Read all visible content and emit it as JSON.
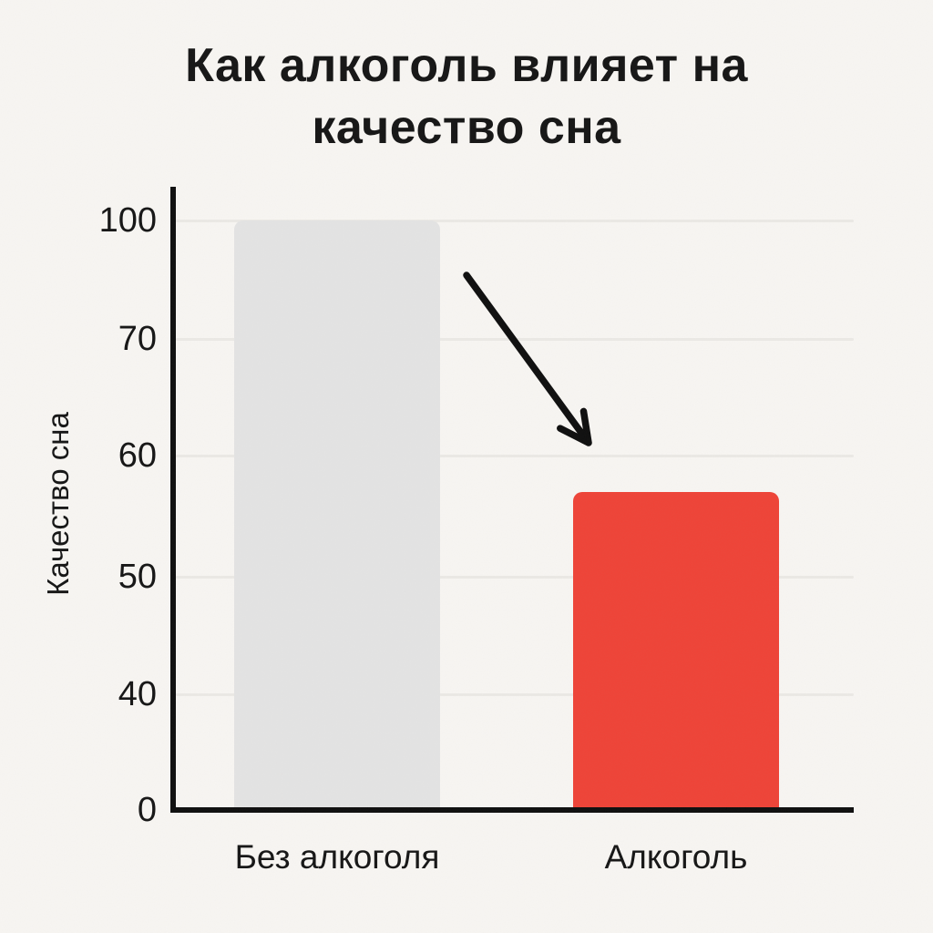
{
  "title": {
    "line1": "Как алкоголь влияет на",
    "line2": "качество сна"
  },
  "chart_data": {
    "type": "bar",
    "title": "Как алкоголь влияет на качество сна",
    "categories": [
      "Без алкоголя",
      "Алкоголь"
    ],
    "values": [
      100,
      57
    ],
    "xlabel": "",
    "ylabel": "Качество сна",
    "yticks": [
      0,
      40,
      50,
      60,
      70,
      100
    ],
    "ylim": [
      0,
      105
    ],
    "grid": true,
    "legend": false,
    "axis_note": "misleading non-linear y-axis: tick values 0/40/50/60/70/100 are evenly spaced",
    "bar_colors": [
      "#E4E4E4",
      "#EF4337"
    ],
    "annotations": [
      {
        "type": "arrow",
        "direction": "down-right",
        "meaning": "decline from 'Без алкоголя' bar toward 'Алкоголь' bar"
      }
    ]
  },
  "colors": {
    "background": "#F8F6F3",
    "text": "#151515",
    "axis": "#0E0E0E",
    "grid": "#ECEAE6",
    "arrow": "#0E0E0E"
  }
}
